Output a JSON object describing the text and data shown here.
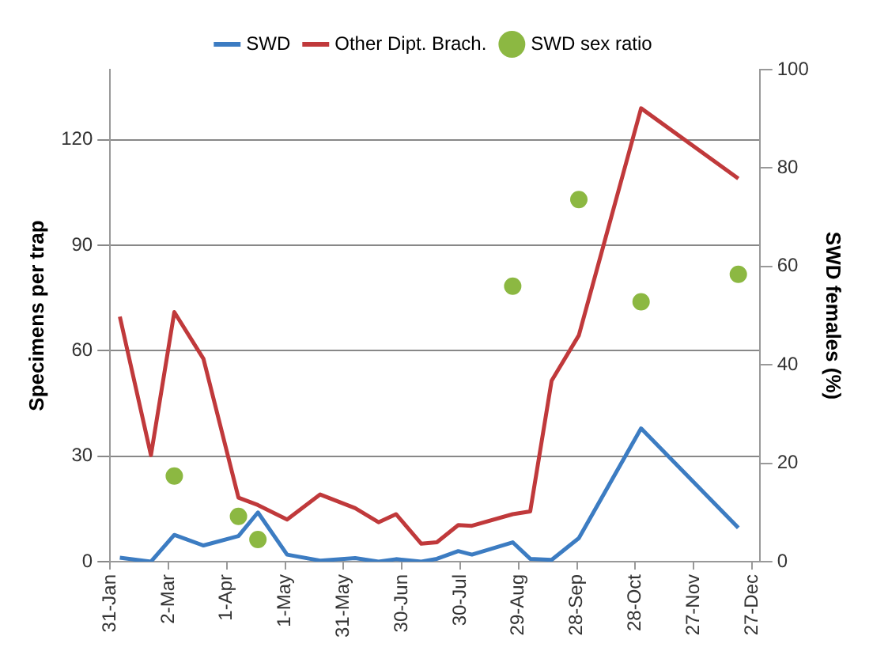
{
  "chart_data": {
    "type": "line",
    "ylabel": "Specimens per trap",
    "y2label": "SWD females (%)",
    "x": [
      "--02-05",
      "--02-21",
      "--03-05",
      "--03-20",
      "--04-07",
      "--04-17",
      "--05-02",
      "--05-19",
      "--06-06",
      "--06-18",
      "--06-27",
      "--07-10",
      "--07-18",
      "--07-29",
      "--08-05",
      "--08-26",
      "--09-04",
      "--09-15",
      "--09-29",
      "--10-31",
      "--12-20"
    ],
    "series": [
      {
        "name": "SWD",
        "color": "#3c7cc2",
        "values": [
          1.1,
          0,
          7.6,
          4.6,
          7.3,
          14,
          2,
          0.3,
          1,
          0,
          0.7,
          0,
          0.8,
          3,
          2,
          5.5,
          0.8,
          0.5,
          6.7,
          37.9,
          9.6
        ]
      },
      {
        "name": "Other Dipt. Brach.",
        "color": "#c0393b",
        "values": [
          69.7,
          30.3,
          71,
          57.7,
          18.2,
          16.1,
          12,
          19.1,
          15.2,
          11.2,
          13.5,
          5.1,
          5.5,
          10.4,
          10.2,
          13.5,
          14.3,
          51.5,
          64.4,
          129,
          109
        ]
      },
      {
        "name": "SWD sex ratio",
        "type": "scatter",
        "axis": "y2",
        "color": "#8cb842",
        "marker": "circle",
        "x": [
          "--03-05",
          "--04-07",
          "--04-17",
          "--08-26",
          "--09-29",
          "--10-31",
          "--12-20"
        ],
        "values": [
          17.4,
          9.2,
          4.5,
          56,
          73.6,
          52.8,
          58.4
        ]
      }
    ],
    "xlim": [
      "--01-31",
      "--12-31"
    ],
    "xticks": [
      {
        "value": "--01-31",
        "label": "31-Jan"
      },
      {
        "value": "--03-02",
        "label": "2-Mar"
      },
      {
        "value": "--04-01",
        "label": "1-Apr"
      },
      {
        "value": "--05-01",
        "label": "1-May"
      },
      {
        "value": "--05-31",
        "label": "31-May"
      },
      {
        "value": "--06-30",
        "label": "30-Jun"
      },
      {
        "value": "--07-30",
        "label": "30-Jul"
      },
      {
        "value": "--08-29",
        "label": "29-Aug"
      },
      {
        "value": "--09-28",
        "label": "28-Sep"
      },
      {
        "value": "--10-28",
        "label": "28-Oct"
      },
      {
        "value": "--11-27",
        "label": "27-Nov"
      },
      {
        "value": "--12-27",
        "label": "27-Dec"
      }
    ],
    "ylim": [
      0,
      140
    ],
    "yticks": [
      0,
      30,
      60,
      90,
      120
    ],
    "y2lim": [
      0,
      100
    ],
    "y2ticks": [
      0,
      20,
      40,
      60,
      80,
      100
    ],
    "grid": "y",
    "legend": "top",
    "marker": "none",
    "line_style": "solid"
  }
}
